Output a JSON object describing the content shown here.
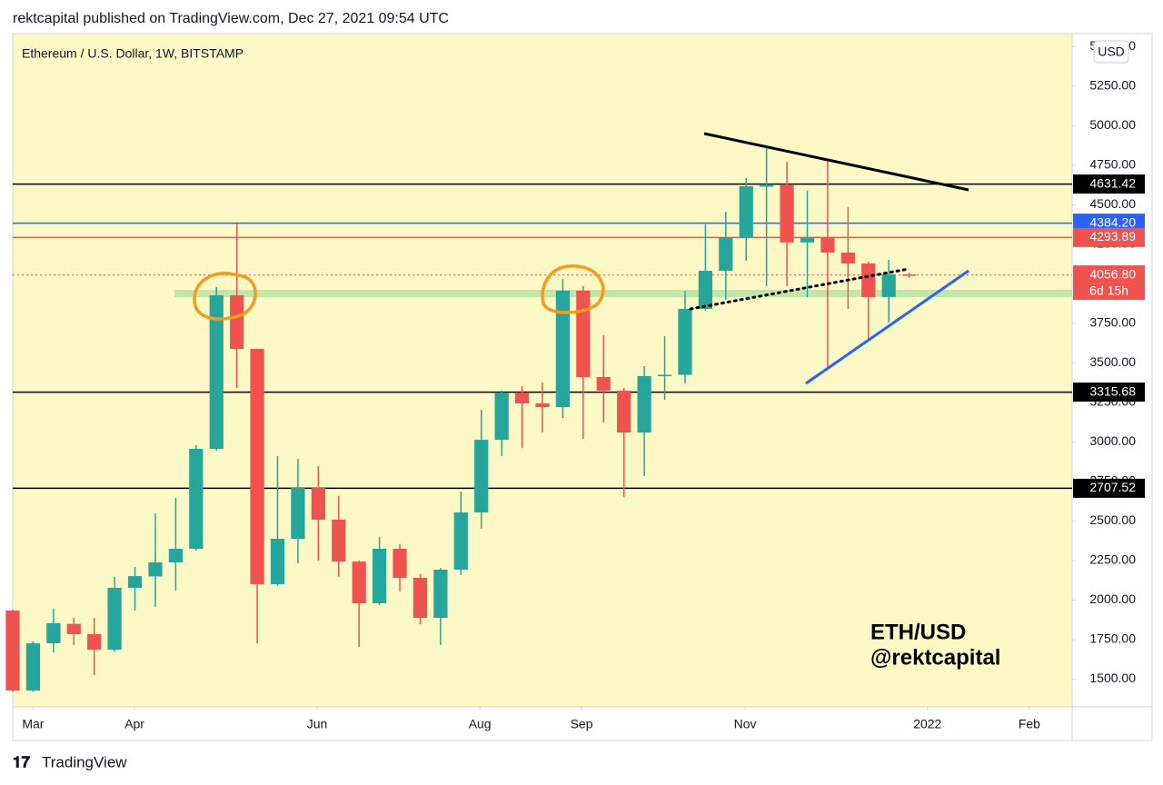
{
  "header": "rektcapital published on TradingView.com, Dec 27, 2021 09:54 UTC",
  "footer": {
    "logo": "TradingView"
  },
  "chart_data": {
    "type": "candlestick",
    "title": "Ethereum / U.S. Dollar, 1W, BITSTAMP",
    "currency": "USD",
    "annotations": [
      "ETH/USD",
      "@rektcapital"
    ],
    "up_color": "#26a69a",
    "down_color": "#ef5350",
    "background": "#fcf9c6",
    "x": [
      0,
      1,
      2,
      3,
      4,
      5,
      6,
      7,
      8,
      9,
      10,
      11,
      12,
      13,
      14,
      15,
      16,
      17,
      18,
      19,
      20,
      21,
      22,
      23,
      24,
      25,
      26,
      27,
      28,
      29,
      30,
      31,
      32,
      33,
      34,
      35,
      36,
      37,
      38,
      39,
      40,
      41,
      42,
      43,
      44
    ],
    "open": [
      1934,
      1428,
      1727,
      1850,
      1785,
      1687,
      2078,
      2150,
      2239,
      2325,
      2957,
      3928,
      3589,
      2101,
      2388,
      2710,
      2509,
      2244,
      1980,
      2325,
      2141,
      1888,
      2193,
      2555,
      3014,
      3313,
      3244,
      3221,
      3957,
      3411,
      3325,
      3060,
      3417,
      3425,
      3842,
      4083,
      4290,
      4615,
      4630,
      4262,
      4290,
      4198,
      4129,
      3917,
      4060
    ],
    "high": [
      1940,
      1740,
      1946,
      1888,
      1888,
      2147,
      2210,
      2549,
      2647,
      2980,
      3980,
      4382,
      3590,
      2911,
      2894,
      2848,
      2658,
      2250,
      2400,
      2354,
      2164,
      2204,
      2687,
      3204,
      3325,
      3353,
      3376,
      4032,
      3986,
      3675,
      3342,
      3480,
      3670,
      3957,
      4376,
      4457,
      4670,
      4876,
      4773,
      4589,
      4785,
      4486,
      4141,
      4152,
      4070
    ],
    "low": [
      1420,
      1420,
      1670,
      1716,
      1526,
      1675,
      1934,
      1957,
      2060,
      2313,
      2946,
      3342,
      1727,
      2090,
      2233,
      2250,
      2147,
      1704,
      1969,
      2055,
      1848,
      1716,
      2158,
      2451,
      2911,
      2963,
      3060,
      3152,
      3020,
      3124,
      2652,
      2785,
      3267,
      3371,
      3830,
      3899,
      4147,
      3986,
      3986,
      3917,
      3468,
      3842,
      3652,
      3756,
      4040
    ],
    "close": [
      1428,
      1727,
      1854,
      1785,
      1687,
      2078,
      2152,
      2239,
      2325,
      2957,
      3928,
      3589,
      2101,
      2388,
      2710,
      2509,
      2244,
      1980,
      2325,
      2141,
      1888,
      2193,
      2555,
      3014,
      3313,
      3244,
      3221,
      3957,
      3411,
      3325,
      3060,
      3417,
      3425,
      3842,
      4083,
      4290,
      4618,
      4630,
      4262,
      4290,
      4198,
      4129,
      3917,
      4060,
      4056.8
    ],
    "xlim": [
      0,
      52
    ],
    "xticks": [
      {
        "value": 1,
        "label": "Mar"
      },
      {
        "value": 5.98,
        "label": "Apr"
      },
      {
        "value": 14.94,
        "label": "Jun"
      },
      {
        "value": 22.93,
        "label": "Aug"
      },
      {
        "value": 27.92,
        "label": "Sep"
      },
      {
        "value": 35.95,
        "label": "Nov"
      },
      {
        "value": 44.9,
        "label": "2022"
      },
      {
        "value": 49.9,
        "label": "Feb"
      }
    ],
    "ylim": [
      1325,
      5583
    ],
    "yticks": [
      {
        "value": 1500,
        "label": "1500.00"
      },
      {
        "value": 1750,
        "label": "1750.00"
      },
      {
        "value": 2000,
        "label": "2000.00"
      },
      {
        "value": 2250,
        "label": "2250.00"
      },
      {
        "value": 2500,
        "label": "2500.00"
      },
      {
        "value": 2750,
        "label": "2750.00"
      },
      {
        "value": 3000,
        "label": "3000.00"
      },
      {
        "value": 3250,
        "label": "3250.00"
      },
      {
        "value": 3500,
        "label": "3500.00"
      },
      {
        "value": 3750,
        "label": "3750.00"
      },
      {
        "value": 4000,
        "label": "4000.00"
      },
      {
        "value": 4250,
        "label": "4250.00"
      },
      {
        "value": 4500,
        "label": "4500.00"
      },
      {
        "value": 4750,
        "label": "4750.00"
      },
      {
        "value": 5000,
        "label": "5000.00"
      },
      {
        "value": 5250,
        "label": "5250.00"
      },
      {
        "value": 5500,
        "label": "5500.00"
      }
    ],
    "levels": [
      {
        "value": 4631.42,
        "color": "#000000"
      },
      {
        "value": 4384.2,
        "label": "4384.20",
        "color": "#2962ff"
      },
      {
        "value": 4293.89,
        "color": "#ef5350"
      },
      {
        "value": 4056.8,
        "label": "4056.80",
        "color": "#ef5350",
        "note": "6d 15h",
        "dotted": true
      },
      {
        "value": 3315.68,
        "color": "#000000"
      },
      {
        "value": 2707.52,
        "color": "#000000"
      }
    ]
  }
}
